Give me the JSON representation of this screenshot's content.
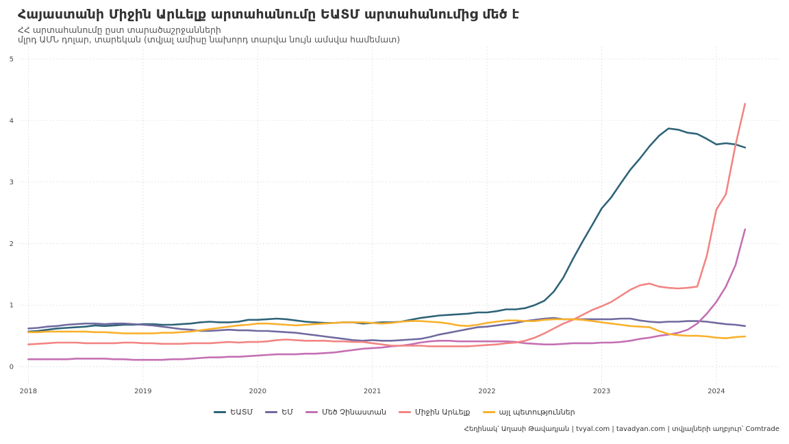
{
  "title": "Հայաստանի Միջին Արևելք արտահանումը ԵԱՏՄ արտահանումից մեծ է",
  "subtitle_line1": "ՀՀ արտահանումը ըստ տարածաշրջանների",
  "subtitle_line2": "մլրդ ԱՄՆ դոլար, տարեկան (տվյալ ամիսը նախորդ տարվա նույն ամսվա համեմատ)",
  "caption": "Հեղինակ՝ Աղասի Թավադյան   |   tvyal.com   |   tavadyan.com   |   տվյալների աղբյուր՝ Comtrade",
  "chart_data": {
    "type": "line",
    "ylim": [
      -0.3,
      5.2
    ],
    "xlim": [
      2017.92,
      2024.55
    ],
    "x_ticks": [
      2018,
      2019,
      2020,
      2021,
      2022,
      2023,
      2024
    ],
    "x_tick_labels": [
      "2018",
      "2019",
      "2020",
      "2021",
      "2022",
      "2023",
      "2024"
    ],
    "y_ticks": [
      0,
      1,
      2,
      3,
      4,
      5
    ],
    "y_tick_labels": [
      "0",
      "1",
      "2",
      "3",
      "4",
      "5"
    ],
    "grid": true,
    "legend": "bottom",
    "x": [
      2018.0,
      2018.083,
      2018.167,
      2018.25,
      2018.333,
      2018.417,
      2018.5,
      2018.583,
      2018.667,
      2018.75,
      2018.833,
      2018.917,
      2019.0,
      2019.083,
      2019.167,
      2019.25,
      2019.333,
      2019.417,
      2019.5,
      2019.583,
      2019.667,
      2019.75,
      2019.833,
      2019.917,
      2020.0,
      2020.083,
      2020.167,
      2020.25,
      2020.333,
      2020.417,
      2020.5,
      2020.583,
      2020.667,
      2020.75,
      2020.833,
      2020.917,
      2021.0,
      2021.083,
      2021.167,
      2021.25,
      2021.333,
      2021.417,
      2021.5,
      2021.583,
      2021.667,
      2021.75,
      2021.833,
      2021.917,
      2022.0,
      2022.083,
      2022.167,
      2022.25,
      2022.333,
      2022.417,
      2022.5,
      2022.583,
      2022.667,
      2022.75,
      2022.833,
      2022.917,
      2023.0,
      2023.083,
      2023.167,
      2023.25,
      2023.333,
      2023.417,
      2023.5,
      2023.583,
      2023.667,
      2023.75,
      2023.833,
      2023.917,
      2024.0,
      2024.083,
      2024.167,
      2024.25
    ],
    "series": [
      {
        "name": "ԵԱՏՄ",
        "color": "#2e6378",
        "values": [
          0.57,
          0.58,
          0.6,
          0.62,
          0.63,
          0.64,
          0.65,
          0.67,
          0.66,
          0.67,
          0.68,
          0.68,
          0.69,
          0.69,
          0.68,
          0.68,
          0.69,
          0.7,
          0.72,
          0.73,
          0.72,
          0.72,
          0.73,
          0.76,
          0.76,
          0.77,
          0.78,
          0.77,
          0.75,
          0.73,
          0.72,
          0.71,
          0.71,
          0.72,
          0.72,
          0.7,
          0.71,
          0.72,
          0.72,
          0.73,
          0.76,
          0.79,
          0.81,
          0.83,
          0.84,
          0.85,
          0.86,
          0.88,
          0.88,
          0.9,
          0.93,
          0.93,
          0.95,
          1.0,
          1.07,
          1.22,
          1.45,
          1.75,
          2.03,
          2.3,
          2.57,
          2.75,
          2.98,
          3.2,
          3.38,
          3.58,
          3.75,
          3.87,
          3.85,
          3.8,
          3.78,
          3.7,
          3.61,
          3.63,
          3.61,
          3.56
        ]
      },
      {
        "name": "ԵՄ",
        "color": "#6f6a9f",
        "values": [
          0.62,
          0.63,
          0.65,
          0.66,
          0.68,
          0.69,
          0.7,
          0.7,
          0.69,
          0.7,
          0.7,
          0.69,
          0.68,
          0.67,
          0.65,
          0.63,
          0.61,
          0.6,
          0.58,
          0.58,
          0.59,
          0.6,
          0.59,
          0.59,
          0.58,
          0.58,
          0.57,
          0.56,
          0.55,
          0.53,
          0.51,
          0.49,
          0.47,
          0.45,
          0.43,
          0.42,
          0.43,
          0.42,
          0.42,
          0.43,
          0.44,
          0.45,
          0.48,
          0.52,
          0.55,
          0.58,
          0.61,
          0.64,
          0.65,
          0.67,
          0.69,
          0.71,
          0.74,
          0.76,
          0.78,
          0.79,
          0.77,
          0.77,
          0.77,
          0.77,
          0.77,
          0.77,
          0.78,
          0.78,
          0.75,
          0.73,
          0.72,
          0.73,
          0.73,
          0.74,
          0.74,
          0.73,
          0.71,
          0.69,
          0.68,
          0.66
        ]
      },
      {
        "name": "Մեծ Չինաստան",
        "color": "#c46fb3",
        "values": [
          0.12,
          0.12,
          0.12,
          0.12,
          0.12,
          0.13,
          0.13,
          0.13,
          0.13,
          0.12,
          0.12,
          0.11,
          0.11,
          0.11,
          0.11,
          0.12,
          0.12,
          0.13,
          0.14,
          0.15,
          0.15,
          0.16,
          0.16,
          0.17,
          0.18,
          0.19,
          0.2,
          0.2,
          0.2,
          0.21,
          0.21,
          0.22,
          0.23,
          0.25,
          0.27,
          0.29,
          0.3,
          0.31,
          0.33,
          0.34,
          0.36,
          0.39,
          0.41,
          0.42,
          0.42,
          0.41,
          0.41,
          0.41,
          0.41,
          0.41,
          0.41,
          0.4,
          0.38,
          0.37,
          0.36,
          0.36,
          0.37,
          0.38,
          0.38,
          0.38,
          0.39,
          0.39,
          0.4,
          0.42,
          0.45,
          0.47,
          0.5,
          0.52,
          0.55,
          0.6,
          0.7,
          0.86,
          1.05,
          1.3,
          1.65,
          2.23
        ]
      },
      {
        "name": "Միջին Արևելք",
        "color": "#f28482",
        "values": [
          0.36,
          0.37,
          0.38,
          0.39,
          0.39,
          0.39,
          0.38,
          0.38,
          0.38,
          0.38,
          0.39,
          0.39,
          0.38,
          0.38,
          0.37,
          0.37,
          0.37,
          0.38,
          0.38,
          0.38,
          0.39,
          0.4,
          0.39,
          0.4,
          0.4,
          0.41,
          0.43,
          0.44,
          0.43,
          0.42,
          0.42,
          0.42,
          0.41,
          0.41,
          0.4,
          0.4,
          0.38,
          0.36,
          0.34,
          0.34,
          0.34,
          0.34,
          0.33,
          0.33,
          0.33,
          0.33,
          0.33,
          0.34,
          0.35,
          0.36,
          0.38,
          0.39,
          0.42,
          0.47,
          0.54,
          0.62,
          0.7,
          0.76,
          0.84,
          0.92,
          0.98,
          1.05,
          1.15,
          1.25,
          1.32,
          1.35,
          1.3,
          1.28,
          1.27,
          1.28,
          1.3,
          1.8,
          2.55,
          2.8,
          3.6,
          4.27
        ]
      },
      {
        "name": "այլ պետություններ",
        "color": "#f9b02c",
        "values": [
          0.56,
          0.56,
          0.57,
          0.57,
          0.57,
          0.57,
          0.57,
          0.56,
          0.56,
          0.55,
          0.54,
          0.54,
          0.54,
          0.54,
          0.55,
          0.55,
          0.56,
          0.57,
          0.59,
          0.61,
          0.63,
          0.65,
          0.67,
          0.68,
          0.7,
          0.7,
          0.69,
          0.68,
          0.67,
          0.68,
          0.69,
          0.7,
          0.71,
          0.72,
          0.72,
          0.72,
          0.71,
          0.7,
          0.71,
          0.73,
          0.74,
          0.74,
          0.73,
          0.72,
          0.7,
          0.67,
          0.66,
          0.68,
          0.71,
          0.73,
          0.75,
          0.75,
          0.74,
          0.74,
          0.76,
          0.77,
          0.77,
          0.77,
          0.76,
          0.74,
          0.72,
          0.7,
          0.68,
          0.66,
          0.65,
          0.64,
          0.58,
          0.53,
          0.51,
          0.5,
          0.5,
          0.49,
          0.47,
          0.46,
          0.48,
          0.49
        ]
      }
    ]
  }
}
